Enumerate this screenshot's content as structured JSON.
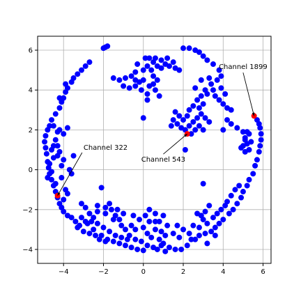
{
  "chart_data": {
    "type": "scatter",
    "title": "",
    "xlabel": "",
    "ylabel": "",
    "xlim": [
      -5.3,
      6.4
    ],
    "ylim": [
      -4.7,
      6.7
    ],
    "x_ticks": [
      -4,
      -2,
      0,
      2,
      4,
      6
    ],
    "y_ticks": [
      -4,
      -2,
      0,
      2,
      4,
      6
    ],
    "grid": true,
    "colors": {
      "points": "#0000ff",
      "highlight": "#ff0000",
      "grid": "#b0b0b0",
      "axes": "#000000"
    },
    "series": [
      {
        "points": [
          [
            -4.7,
            2.2
          ],
          [
            -4.8,
            2.0
          ],
          [
            -4.9,
            1.7
          ],
          [
            -4.95,
            1.4
          ],
          [
            -4.9,
            1.1
          ],
          [
            -4.85,
            0.8
          ],
          [
            -4.8,
            0.4
          ],
          [
            -4.75,
            0.1
          ],
          [
            -4.7,
            -0.2
          ],
          [
            -4.6,
            -0.5
          ],
          [
            -4.5,
            -0.8
          ],
          [
            -4.4,
            -1.1
          ],
          [
            -4.3,
            -1.4
          ],
          [
            -4.2,
            -1.7
          ],
          [
            -4.1,
            -1.9
          ],
          [
            -4.0,
            -2.1
          ],
          [
            -3.8,
            -2.3
          ],
          [
            -3.6,
            -2.4
          ],
          [
            -3.4,
            -2.6
          ],
          [
            -3.2,
            -2.8
          ],
          [
            -4.6,
            2.5
          ],
          [
            -4.4,
            2.8
          ],
          [
            -4.2,
            3.1
          ],
          [
            -4.1,
            3.4
          ],
          [
            -4.0,
            3.6
          ],
          [
            -3.9,
            3.9
          ],
          [
            -3.8,
            4.1
          ],
          [
            -3.6,
            4.4
          ],
          [
            -3.5,
            4.6
          ],
          [
            -3.3,
            4.8
          ],
          [
            -3.1,
            5.0
          ],
          [
            -2.9,
            5.2
          ],
          [
            -2.7,
            5.4
          ],
          [
            -4.4,
            1.5
          ],
          [
            -4.3,
            1.2
          ],
          [
            -4.2,
            0.9
          ],
          [
            -4.0,
            0.5
          ],
          [
            -4.1,
            0.2
          ],
          [
            -4.5,
            0.6
          ],
          [
            -4.6,
            -0.1
          ],
          [
            -4.3,
            0.7
          ],
          [
            -4.0,
            1.8
          ],
          [
            -3.8,
            2.1
          ],
          [
            -3.5,
            0.7
          ],
          [
            -4.2,
            2.0
          ],
          [
            -4.5,
            1.2
          ],
          [
            -4.7,
            0.3
          ],
          [
            -3.9,
            -1.0
          ],
          [
            -4.1,
            -0.4
          ],
          [
            -3.7,
            0.0
          ],
          [
            -4.3,
            1.9
          ],
          [
            -4.6,
            1.0
          ],
          [
            -4.4,
            -0.7
          ],
          [
            -4.2,
            3.6
          ],
          [
            -3.9,
            4.3
          ],
          [
            -4.0,
            -1.5
          ],
          [
            -3.8,
            -1.2
          ],
          [
            -3.6,
            -0.2
          ],
          [
            -4.8,
            -0.4
          ],
          [
            -4.5,
            2.2
          ],
          [
            -3.1,
            -1.7
          ],
          [
            -2.9,
            -1.9
          ],
          [
            -2.7,
            -2.2
          ],
          [
            -2.5,
            -2.4
          ],
          [
            -2.3,
            -2.7
          ],
          [
            -2.0,
            -2.9
          ],
          [
            -1.7,
            -3.1
          ],
          [
            -1.4,
            -3.3
          ],
          [
            -1.1,
            -3.4
          ],
          [
            -0.8,
            -3.5
          ],
          [
            -2.8,
            -2.7
          ],
          [
            -2.5,
            -3.0
          ],
          [
            -2.1,
            -3.3
          ],
          [
            -1.8,
            -3.5
          ],
          [
            -1.5,
            -3.6
          ],
          [
            -1.2,
            -3.7
          ],
          [
            -0.9,
            -3.8
          ],
          [
            -0.6,
            -3.9
          ],
          [
            -0.3,
            -4.0
          ],
          [
            0.0,
            -4.05
          ],
          [
            -1.9,
            -2.2
          ],
          [
            -1.6,
            -2.0
          ],
          [
            -1.4,
            -2.3
          ],
          [
            -1.2,
            -2.5
          ],
          [
            -1.0,
            -2.2
          ],
          [
            -1.3,
            -2.0
          ],
          [
            -1.1,
            -2.8
          ],
          [
            -0.9,
            -3.0
          ],
          [
            -0.6,
            -2.8
          ],
          [
            -0.4,
            -3.0
          ],
          [
            -0.2,
            -2.5
          ],
          [
            0.0,
            -2.9
          ],
          [
            0.2,
            -3.2
          ],
          [
            0.4,
            -3.4
          ],
          [
            0.6,
            -3.0
          ],
          [
            0.8,
            -2.6
          ],
          [
            1.0,
            -2.3
          ],
          [
            0.6,
            -2.2
          ],
          [
            0.3,
            -2.0
          ],
          [
            0.1,
            -2.3
          ],
          [
            0.8,
            -3.5
          ],
          [
            1.0,
            -3.7
          ],
          [
            1.3,
            -3.9
          ],
          [
            1.6,
            -4.0
          ],
          [
            1.9,
            -4.0
          ],
          [
            2.2,
            -3.8
          ],
          [
            2.4,
            -3.5
          ],
          [
            1.2,
            -2.8
          ],
          [
            1.5,
            -3.2
          ],
          [
            1.8,
            -3.4
          ],
          [
            0.2,
            -3.8
          ],
          [
            0.5,
            -3.9
          ],
          [
            0.7,
            -4.0
          ],
          [
            -0.1,
            -3.6
          ],
          [
            -0.4,
            -3.5
          ],
          [
            -0.7,
            -3.3
          ],
          [
            0.9,
            -3.1
          ],
          [
            1.1,
            -3.3
          ],
          [
            0.3,
            -2.6
          ],
          [
            0.6,
            -2.6
          ],
          [
            2.6,
            -3.5
          ],
          [
            2.8,
            -3.3
          ],
          [
            3.1,
            -3.2
          ],
          [
            3.4,
            -3.1
          ],
          [
            3.6,
            -2.9
          ],
          [
            3.8,
            -2.7
          ],
          [
            4.0,
            -2.5
          ],
          [
            4.3,
            -2.2
          ],
          [
            4.5,
            -2.0
          ],
          [
            4.7,
            -1.7
          ],
          [
            2.8,
            -2.9
          ],
          [
            3.0,
            -2.5
          ],
          [
            3.2,
            -2.7
          ],
          [
            3.5,
            -2.4
          ],
          [
            3.7,
            -2.2
          ],
          [
            3.9,
            -2.0
          ],
          [
            4.1,
            -1.8
          ],
          [
            3.3,
            -1.8
          ],
          [
            3.1,
            -2.1
          ],
          [
            2.9,
            -2.3
          ],
          [
            4.9,
            -1.4
          ],
          [
            5.0,
            -1.1
          ],
          [
            5.2,
            -0.8
          ],
          [
            5.3,
            -0.5
          ],
          [
            5.5,
            -0.2
          ],
          [
            5.6,
            0.2
          ],
          [
            5.7,
            0.5
          ],
          [
            5.8,
            0.9
          ],
          [
            5.85,
            1.2
          ],
          [
            5.9,
            1.5
          ],
          [
            5.9,
            1.8
          ],
          [
            5.85,
            2.1
          ],
          [
            5.8,
            2.3
          ],
          [
            5.7,
            2.5
          ],
          [
            5.2,
            1.9
          ],
          [
            5.1,
            1.5
          ],
          [
            5.0,
            1.2
          ],
          [
            5.3,
            1.0
          ],
          [
            5.4,
            1.4
          ],
          [
            5.1,
            0.9
          ],
          [
            4.4,
            -1.3
          ],
          [
            4.6,
            -1.0
          ],
          [
            4.8,
            -0.8
          ],
          [
            4.2,
            -1.6
          ],
          [
            2.0,
            -3.0
          ],
          [
            2.3,
            -3.2
          ],
          [
            2.5,
            -2.8
          ],
          [
            2.7,
            -2.2
          ],
          [
            3.0,
            -0.7
          ],
          [
            1.7,
            -2.8
          ],
          [
            -2.0,
            6.1
          ],
          [
            -1.8,
            6.2
          ],
          [
            -1.9,
            6.15
          ],
          [
            -1.5,
            4.6
          ],
          [
            -1.2,
            4.5
          ],
          [
            -0.9,
            4.6
          ],
          [
            -0.6,
            4.7
          ],
          [
            -0.4,
            4.5
          ],
          [
            -0.2,
            4.4
          ],
          [
            0.0,
            4.5
          ],
          [
            -1.0,
            4.2
          ],
          [
            -0.7,
            4.1
          ],
          [
            -0.4,
            4.2
          ],
          [
            -0.1,
            4.0
          ],
          [
            0.2,
            3.8
          ],
          [
            0.3,
            4.2
          ],
          [
            0.5,
            4.3
          ],
          [
            0.6,
            4.0
          ],
          [
            0.8,
            3.7
          ],
          [
            0.2,
            3.5
          ],
          [
            0.3,
            5.6
          ],
          [
            0.5,
            5.4
          ],
          [
            0.7,
            5.2
          ],
          [
            0.9,
            5.1
          ],
          [
            1.1,
            5.3
          ],
          [
            1.3,
            5.2
          ],
          [
            1.6,
            5.1
          ],
          [
            1.8,
            5.0
          ],
          [
            0.2,
            5.2
          ],
          [
            0.0,
            5.0
          ],
          [
            0.4,
            5.0
          ],
          [
            0.6,
            5.6
          ],
          [
            0.9,
            5.5
          ],
          [
            1.2,
            5.6
          ],
          [
            -0.4,
            4.9
          ],
          [
            -0.3,
            5.3
          ],
          [
            0.1,
            5.6
          ],
          [
            1.5,
            5.4
          ],
          [
            0.7,
            4.5
          ],
          [
            0.5,
            4.7
          ],
          [
            2.0,
            6.1
          ],
          [
            2.3,
            6.1
          ],
          [
            2.6,
            6.0
          ],
          [
            2.8,
            5.9
          ],
          [
            3.0,
            5.7
          ],
          [
            3.2,
            5.5
          ],
          [
            3.5,
            5.3
          ],
          [
            3.8,
            5.0
          ],
          [
            3.9,
            4.7
          ],
          [
            3.7,
            4.5
          ],
          [
            3.4,
            4.3
          ],
          [
            3.5,
            4.0
          ],
          [
            3.6,
            3.7
          ],
          [
            3.8,
            3.5
          ],
          [
            4.0,
            3.3
          ],
          [
            4.2,
            3.1
          ],
          [
            4.4,
            3.0
          ],
          [
            3.9,
            4.1
          ],
          [
            4.1,
            3.8
          ],
          [
            3.3,
            4.6
          ],
          [
            3.1,
            4.0
          ],
          [
            2.9,
            3.7
          ],
          [
            2.7,
            3.5
          ],
          [
            2.5,
            3.2
          ],
          [
            2.3,
            3.0
          ],
          [
            2.8,
            3.1
          ],
          [
            3.0,
            3.3
          ],
          [
            3.2,
            3.8
          ],
          [
            2.6,
            4.1
          ],
          [
            2.9,
            4.5
          ],
          [
            1.5,
            2.5
          ],
          [
            1.7,
            2.3
          ],
          [
            1.9,
            2.1
          ],
          [
            2.1,
            2.0
          ],
          [
            2.3,
            2.2
          ],
          [
            2.5,
            2.4
          ],
          [
            2.7,
            2.6
          ],
          [
            2.9,
            2.8
          ],
          [
            2.6,
            2.0
          ],
          [
            2.4,
            1.8
          ],
          [
            1.8,
            2.7
          ],
          [
            1.6,
            2.9
          ],
          [
            2.0,
            2.5
          ],
          [
            2.2,
            2.7
          ],
          [
            3.1,
            2.6
          ],
          [
            3.3,
            2.4
          ],
          [
            2.8,
            2.2
          ],
          [
            1.4,
            2.2
          ],
          [
            2.1,
            1.0
          ],
          [
            3.0,
            2.0
          ],
          [
            5.0,
            1.9
          ],
          [
            5.1,
            1.6
          ],
          [
            5.2,
            1.3
          ],
          [
            4.9,
            1.1
          ],
          [
            5.3,
            1.8
          ],
          [
            4.7,
            2.1
          ],
          [
            4.4,
            2.3
          ],
          [
            4.2,
            2.5
          ],
          [
            4.0,
            2.0
          ],
          [
            0.0,
            2.6
          ],
          [
            -3.3,
            -2.9
          ],
          [
            -3.0,
            -3.1
          ],
          [
            -2.7,
            -3.2
          ],
          [
            -2.4,
            -3.3
          ],
          [
            -2.2,
            -3.5
          ],
          [
            -1.9,
            -3.6
          ],
          [
            -3.1,
            -2.4
          ],
          [
            -2.9,
            -2.6
          ],
          [
            -2.6,
            -2.6
          ],
          [
            -2.3,
            -2.1
          ],
          [
            -2.1,
            -0.9
          ],
          [
            -1.7,
            -1.7
          ],
          [
            -1.9,
            -1.9
          ],
          [
            -2.3,
            -1.8
          ],
          [
            -1.5,
            -2.5
          ],
          [
            -0.5,
            -2.3
          ],
          [
            0.9,
            -3.8
          ],
          [
            1.1,
            -4.1
          ],
          [
            3.2,
            -3.7
          ],
          [
            3.6,
            -3.3
          ]
        ]
      }
    ],
    "highlights": [
      {
        "label": "Channel 322",
        "x": -4.3,
        "y": -1.3,
        "text_at": [
          -3.0,
          1.0
        ],
        "anchor": "start"
      },
      {
        "label": "Channel 543",
        "x": 2.2,
        "y": 1.8,
        "text_at": [
          1.0,
          0.4
        ],
        "anchor": "middle"
      },
      {
        "label": "Channel 1899",
        "x": 5.55,
        "y": 2.7,
        "text_at": [
          5.0,
          5.05
        ],
        "anchor": "middle"
      }
    ]
  }
}
